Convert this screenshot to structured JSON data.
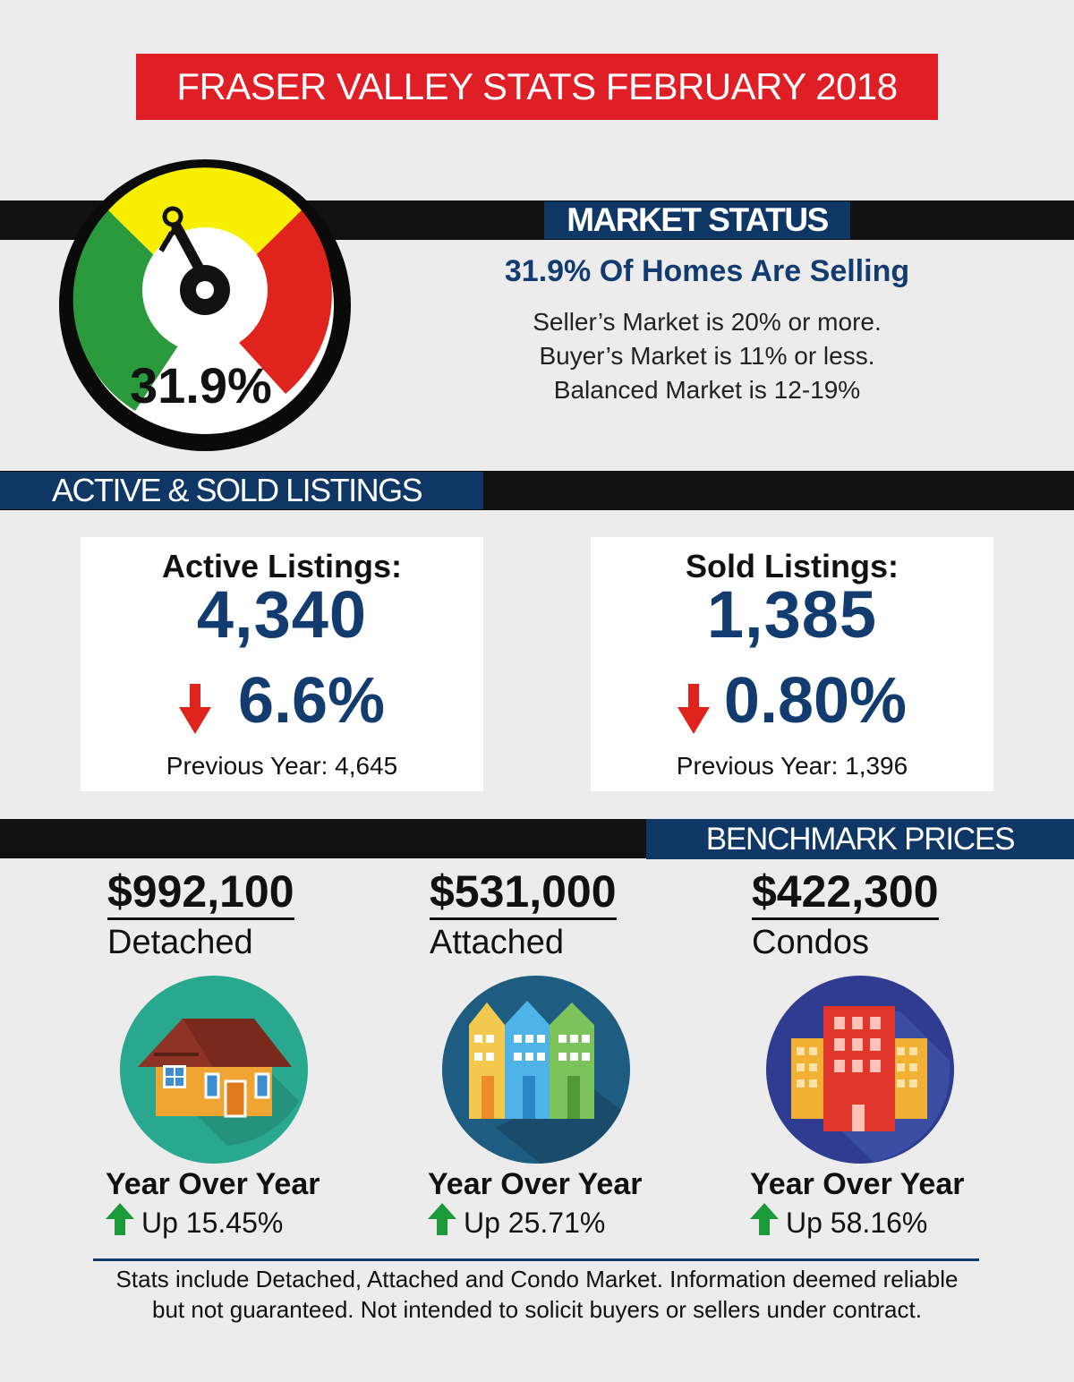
{
  "title": "FRASER VALLEY STATS FEBRUARY 2018",
  "market_status": {
    "tag": "MARKET STATUS",
    "headline": "31.9% Of Homes Are Selling",
    "lines": [
      "Seller’s Market is 20% or more.",
      "Buyer’s Market is 11% or less.",
      "Balanced Market is 12-19%"
    ],
    "gauge_value": "31.9%",
    "gauge_icon": "key-icon",
    "gauge_colors": {
      "green": "#2a9a3c",
      "yellow": "#f7ee00",
      "red": "#e0231d"
    }
  },
  "listings": {
    "tag": "ACTIVE & SOLD LISTINGS",
    "active": {
      "label": "Active Listings:",
      "value": "4,340",
      "change": "6.6%",
      "direction_icon": "arrow-down-icon",
      "previous": "Previous Year: 4,645"
    },
    "sold": {
      "label": "Sold Listings:",
      "value": "1,385",
      "change": "0.80%",
      "direction_icon": "arrow-down-icon",
      "previous": "Previous Year: 1,396"
    }
  },
  "benchmark": {
    "tag": "BENCHMARK PRICES",
    "items": [
      {
        "price": "$992,100",
        "type": "Detached",
        "yoy_label": "Year Over Year",
        "change": "Up 15.45%",
        "icon": "house-icon"
      },
      {
        "price": "$531,000",
        "type": "Attached",
        "yoy_label": "Year Over Year",
        "change": "Up 25.71%",
        "icon": "townhouse-icon"
      },
      {
        "price": "$422,300",
        "type": "Condos",
        "yoy_label": "Year Over Year",
        "change": "Up 58.16%",
        "icon": "condo-building-icon"
      }
    ]
  },
  "footer": {
    "line1": "Stats include Detached, Attached and Condo Market. Information deemed reliable",
    "line2": "but not guaranteed. Not intended to solicit buyers or sellers under contract."
  },
  "colors": {
    "brand_red": "#e01e25",
    "navy": "#0f3766",
    "text_navy": "#123c6f",
    "down_red": "#e0231d",
    "up_green": "#1c9a3a"
  }
}
